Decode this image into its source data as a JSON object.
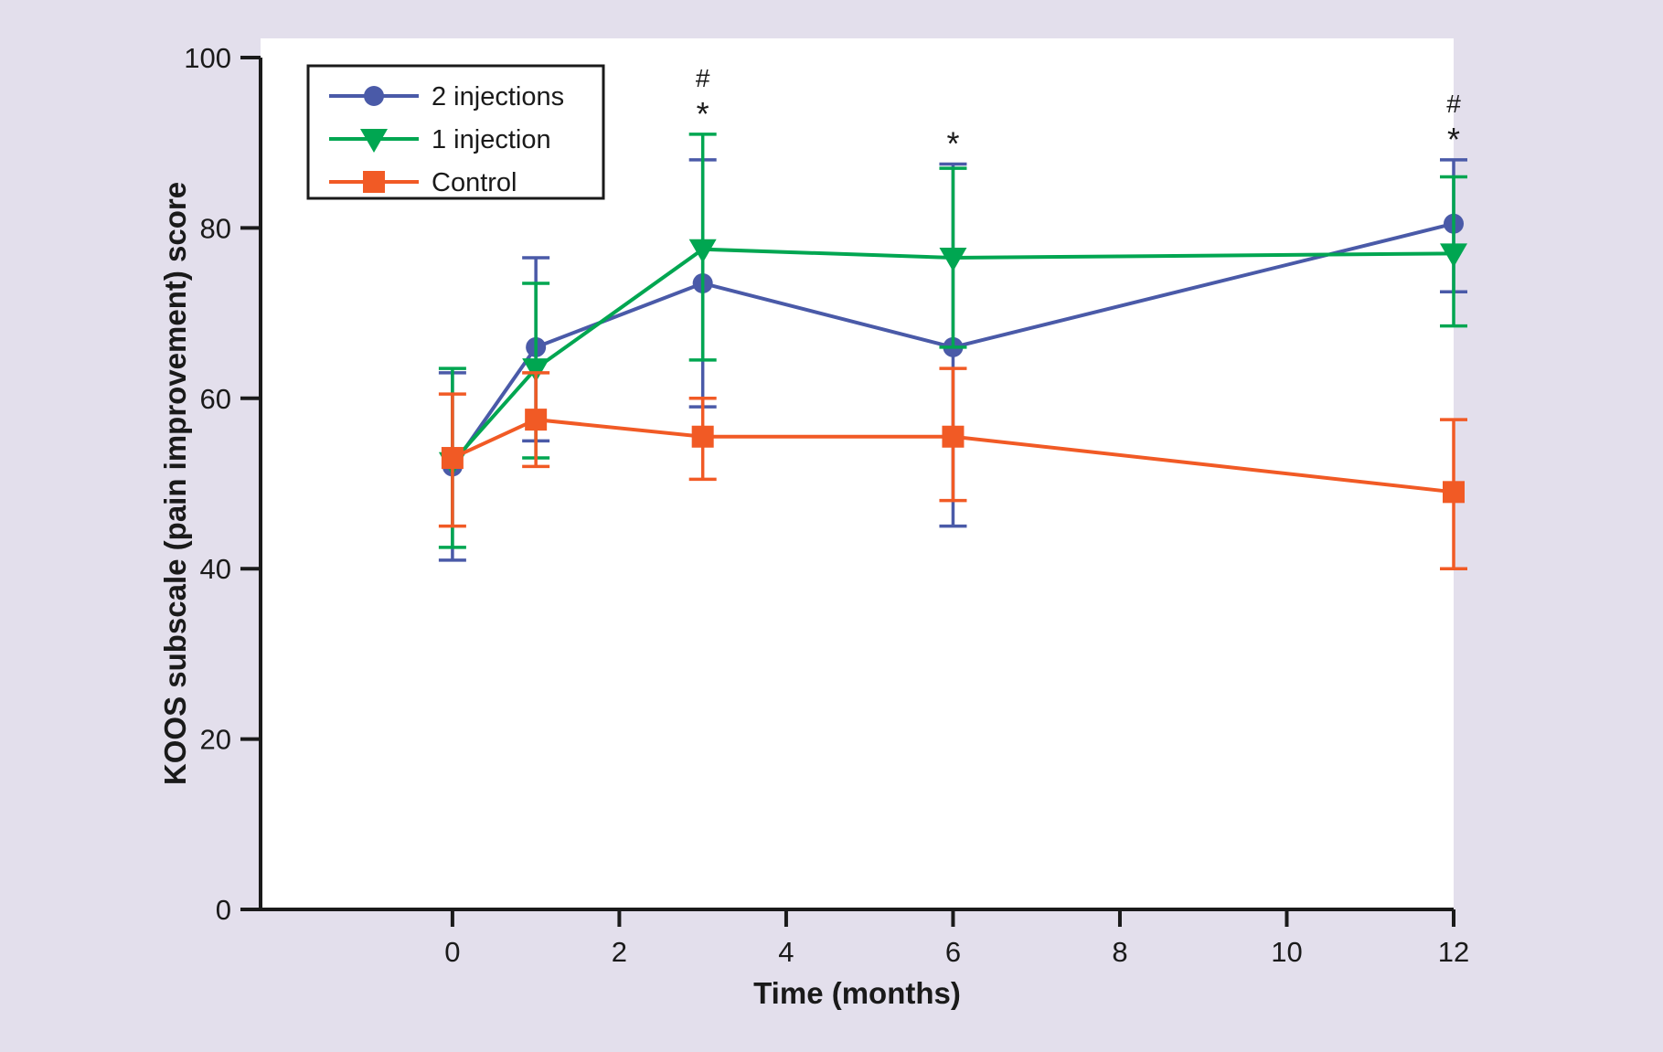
{
  "figure": {
    "background_color": "#E3DFEC",
    "plot_background": "#FFFFFF",
    "axis_color": "#1A1A1A"
  },
  "chart_data": {
    "type": "line",
    "title": "",
    "xlabel": "Time (months)",
    "ylabel": "KOOS subscale (pain improvement) score",
    "x": [
      0,
      1,
      3,
      6,
      12
    ],
    "xticks": [
      0,
      2,
      4,
      6,
      8,
      10,
      12
    ],
    "yticks": [
      0,
      20,
      40,
      60,
      80,
      100
    ],
    "xlim": [
      -2.3,
      12
    ],
    "ylim": [
      0,
      100
    ],
    "grid": false,
    "legend_position": "top-left",
    "series": [
      {
        "name": "2 injections",
        "color": "#4A5AA8",
        "marker": "circle",
        "values": [
          52,
          66,
          73.5,
          66,
          80.5
        ],
        "err_up": [
          11,
          10.5,
          14.5,
          21.5,
          7.5
        ],
        "err_down": [
          11,
          11,
          14.5,
          21,
          8
        ]
      },
      {
        "name": "1 injection",
        "color": "#00A651",
        "marker": "triangle-down",
        "values": [
          52.5,
          63.5,
          77.5,
          76.5,
          77
        ],
        "err_up": [
          11,
          10,
          13.5,
          10.5,
          9
        ],
        "err_down": [
          10,
          10.5,
          13,
          10.5,
          8.5
        ]
      },
      {
        "name": "Control",
        "color": "#F15A25",
        "marker": "square",
        "values": [
          53,
          57.5,
          55.5,
          55.5,
          49
        ],
        "err_up": [
          7.5,
          5.5,
          4.5,
          8,
          8.5
        ],
        "err_down": [
          8,
          5.5,
          5,
          7.5,
          9
        ]
      }
    ],
    "annotations": [
      {
        "month": 3,
        "symbols": [
          "#",
          "*"
        ]
      },
      {
        "month": 6,
        "symbols": [
          "*"
        ]
      },
      {
        "month": 12,
        "symbols": [
          "#",
          "*"
        ]
      }
    ]
  }
}
